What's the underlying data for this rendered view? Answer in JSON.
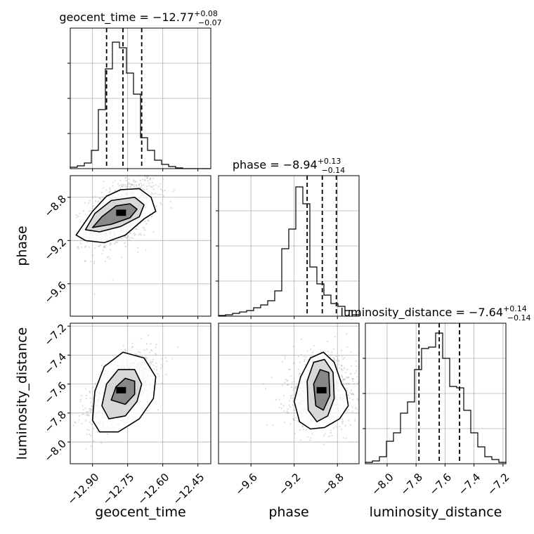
{
  "chart_data": {
    "type": "corner",
    "parameters": [
      "geocent_time",
      "phase",
      "luminosity_distance"
    ],
    "axis_labels": [
      "geocent_time",
      "phase",
      "luminosity_distance"
    ],
    "ranges": [
      [
        -12.995,
        -12.395
      ],
      [
        -9.9,
        -8.6
      ],
      [
        -8.15,
        -7.18
      ]
    ],
    "ticks": {
      "geocent_time": [
        -12.9,
        -12.75,
        -12.6,
        -12.45
      ],
      "phase": [
        -9.6,
        -9.2,
        -8.8
      ],
      "luminosity_distance": [
        -8.0,
        -7.8,
        -7.6,
        -7.4,
        -7.2
      ]
    },
    "tick_labels": {
      "geocent_time": [
        "−12.90",
        "−12.75",
        "−12.60",
        "−12.45"
      ],
      "phase": [
        "−9.6",
        "−9.2",
        "−8.8"
      ],
      "luminosity_distance": [
        "−8.0",
        "−7.8",
        "−7.6",
        "−7.4",
        "−7.2"
      ]
    },
    "titles": [
      {
        "param": "geocent_time",
        "prefix": "geocent_time = ",
        "median": "−12.77",
        "plus": "+0.08",
        "minus": "−0.07"
      },
      {
        "param": "phase",
        "prefix": "phase = ",
        "median": "−8.94",
        "plus": "+0.13",
        "minus": "−0.14"
      },
      {
        "param": "luminosity_distance",
        "prefix": "luminosity_distance = ",
        "median": "−7.64",
        "plus": "+0.14",
        "minus": "−0.14"
      }
    ],
    "quantiles": {
      "geocent_time": [
        -12.84,
        -12.77,
        -12.69
      ],
      "phase": [
        -9.08,
        -8.94,
        -8.81
      ],
      "luminosity_distance": [
        -7.78,
        -7.64,
        -7.5
      ]
    },
    "histograms": {
      "geocent_time": {
        "edges_start": -12.995,
        "bin_width": 0.03,
        "counts": [
          0.01,
          0.02,
          0.04,
          0.13,
          0.42,
          0.71,
          0.9,
          0.86,
          0.68,
          0.53,
          0.22,
          0.13,
          0.06,
          0.03,
          0.015,
          0.005,
          0,
          0,
          0,
          0
        ]
      },
      "phase": {
        "edges_start": -9.9,
        "bin_width": 0.065,
        "counts": [
          0.005,
          0.01,
          0.02,
          0.03,
          0.04,
          0.06,
          0.08,
          0.11,
          0.18,
          0.48,
          0.62,
          0.92,
          0.8,
          0.35,
          0.23,
          0.15,
          0.09,
          0.07,
          0.04,
          0.01
        ]
      },
      "luminosity_distance": {
        "edges_start": -8.15,
        "bin_width": 0.0485,
        "counts": [
          0.01,
          0.02,
          0.05,
          0.16,
          0.22,
          0.36,
          0.44,
          0.67,
          0.82,
          0.83,
          0.93,
          0.75,
          0.55,
          0.54,
          0.38,
          0.22,
          0.12,
          0.05,
          0.03,
          0.01
        ]
      }
    },
    "grid": true,
    "style": "histograms on the diagonal with dashed quantile lines; 2D scatter with density contours below"
  }
}
